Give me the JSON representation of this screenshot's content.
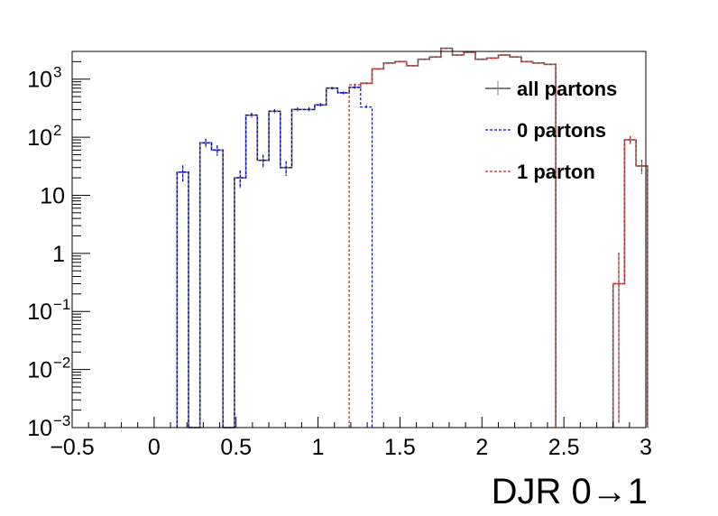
{
  "chart_data": {
    "type": "histogram",
    "title": "",
    "xlabel": "DJR 0→1",
    "ylabel": "",
    "xlim": [
      -0.5,
      3
    ],
    "ylim": [
      0.001,
      3000
    ],
    "yscale": "log",
    "grid": false,
    "legend_position": "top-right",
    "bin_width": 0.07,
    "x_ticks": [
      {
        "value": -0.5,
        "label": "−0.5"
      },
      {
        "value": 0,
        "label": "0"
      },
      {
        "value": 0.5,
        "label": "0.5"
      },
      {
        "value": 1,
        "label": "1"
      },
      {
        "value": 1.5,
        "label": "1.5"
      },
      {
        "value": 2,
        "label": "2"
      },
      {
        "value": 2.5,
        "label": "2.5"
      },
      {
        "value": 3,
        "label": "3"
      }
    ],
    "y_ticks": [
      {
        "value": 0.001,
        "base": "10",
        "exp": "−3"
      },
      {
        "value": 0.01,
        "base": "10",
        "exp": "−2"
      },
      {
        "value": 0.1,
        "base": "10",
        "exp": "−1"
      },
      {
        "value": 1,
        "base": "1",
        "exp": ""
      },
      {
        "value": 10,
        "base": "10",
        "exp": ""
      },
      {
        "value": 100,
        "base": "10",
        "exp": "2"
      },
      {
        "value": 1000,
        "base": "10",
        "exp": "3"
      }
    ],
    "series": [
      {
        "name": "all partons",
        "color": "#808080",
        "dash": "",
        "x": [
          0.14,
          0.21,
          0.28,
          0.35,
          0.42,
          0.49,
          0.56,
          0.63,
          0.7,
          0.77,
          0.84,
          0.91,
          0.98,
          1.05,
          1.12,
          1.19,
          1.26,
          1.33,
          1.4,
          1.47,
          1.54,
          1.61,
          1.68,
          1.75,
          1.82,
          1.89,
          1.96,
          2.03,
          2.1,
          2.17,
          2.24,
          2.31,
          2.38,
          2.8,
          2.87,
          2.94
        ],
        "values": [
          25,
          0.001,
          80,
          60,
          0.001,
          20,
          240,
          40,
          280,
          30,
          300,
          300,
          360,
          700,
          580,
          720,
          850,
          1500,
          1900,
          2000,
          1700,
          2200,
          2400,
          3400,
          2600,
          2900,
          2200,
          2300,
          2600,
          2400,
          2000,
          1900,
          1800,
          0.3,
          90,
          32
        ]
      },
      {
        "name": "0 partons",
        "color": "#0000cc",
        "dash": "3,2",
        "x": [
          0.14,
          0.21,
          0.28,
          0.35,
          0.42,
          0.49,
          0.56,
          0.63,
          0.7,
          0.77,
          0.84,
          0.91,
          0.98,
          1.05,
          1.12,
          1.19,
          1.26
        ],
        "values": [
          25,
          0.001,
          80,
          60,
          0.001,
          20,
          240,
          40,
          280,
          30,
          300,
          300,
          360,
          700,
          580,
          720,
          330
        ]
      },
      {
        "name": "1 parton",
        "color": "#cc2222",
        "dash": "3,2",
        "x": [
          1.19,
          1.26,
          1.33,
          1.4,
          1.47,
          1.54,
          1.61,
          1.68,
          1.75,
          1.82,
          1.89,
          1.96,
          2.03,
          2.1,
          2.17,
          2.24,
          2.31,
          2.38,
          2.8,
          2.87,
          2.94
        ],
        "values": [
          800,
          850,
          1500,
          1900,
          2000,
          1700,
          2200,
          2400,
          3400,
          2600,
          2900,
          2200,
          2300,
          2600,
          2400,
          2000,
          1900,
          1800,
          0.3,
          90,
          32
        ]
      }
    ]
  }
}
